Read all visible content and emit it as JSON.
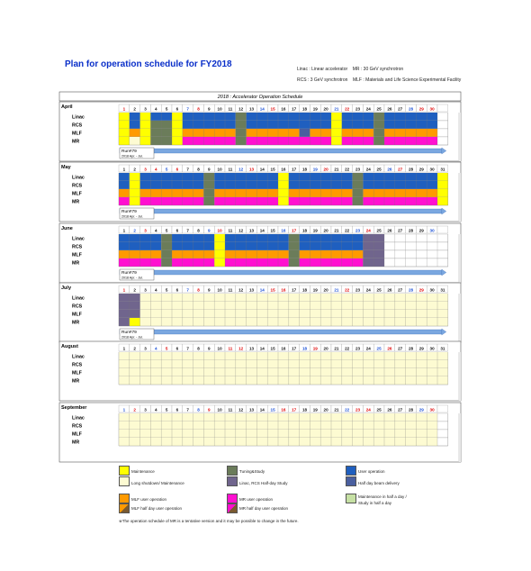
{
  "title": "Plan for operation schedule for FY2018",
  "abbrev": {
    "linac": "Linac : Linear accelerator",
    "mr": "MR : 30 GeV synchrotron",
    "rcs": "RCS : 3 GeV synchrotron",
    "mlf": "MLF : Materials and Life Science Experimental Facility"
  },
  "table_title": "2018 : Accelerator Operation Schedule",
  "facilities": [
    "Linac",
    "RCS",
    "MLF",
    "MR"
  ],
  "colors": {
    "maint": "#ffff00",
    "tuning": "#6b7c5a",
    "user": "#1f5fbf",
    "mlf": "#ff9a00",
    "mr": "#ff10d0",
    "longshut": "#fdfbd2",
    "halfday": "#c6e0a4",
    "beamdelivery": "#4a5f9f",
    "rcshalf": "#70658d",
    "bg": "#ffffff",
    "grid": "#8a8a8a",
    "weekend_grey": "#d8d8d8",
    "runbar": "#7aa7e0"
  },
  "months": [
    {
      "name": "April",
      "days": 30,
      "sundays": [
        1,
        8,
        15,
        22,
        29
      ],
      "saturdays": [
        7,
        14,
        21,
        28
      ],
      "holidays": [
        30
      ],
      "run": {
        "label": "Run#79",
        "sub": "2018 Apr. - Jul."
      },
      "rows": {
        "Linac": [
          [
            "maint",
            1,
            1
          ],
          [
            "user",
            2,
            2
          ],
          [
            "maint",
            3,
            3
          ],
          [
            "user",
            4,
            5
          ],
          [
            "maint",
            6,
            6
          ],
          [
            "user",
            7,
            11
          ],
          [
            "tuning",
            12,
            12
          ],
          [
            "user",
            13,
            20
          ],
          [
            "maint",
            21,
            21
          ],
          [
            "user",
            22,
            24
          ],
          [
            "tuning",
            25,
            25
          ],
          [
            "user",
            26,
            30
          ]
        ],
        "RCS": [
          [
            "maint",
            1,
            1
          ],
          [
            "user",
            2,
            2
          ],
          [
            "maint",
            3,
            3
          ],
          [
            "tuning",
            4,
            5
          ],
          [
            "maint",
            6,
            6
          ],
          [
            "user",
            7,
            11
          ],
          [
            "tuning",
            12,
            12
          ],
          [
            "user",
            13,
            20
          ],
          [
            "maint",
            21,
            21
          ],
          [
            "user",
            22,
            24
          ],
          [
            "tuning",
            25,
            25
          ],
          [
            "user",
            26,
            30
          ]
        ],
        "MLF": [
          [
            "maint",
            1,
            1
          ],
          [
            "mlf",
            2,
            2
          ],
          [
            "maint",
            3,
            3
          ],
          [
            "tuning",
            4,
            5
          ],
          [
            "maint",
            6,
            6
          ],
          [
            "mlf",
            7,
            11
          ],
          [
            "tuning",
            12,
            12
          ],
          [
            "mlf",
            13,
            17
          ],
          [
            "beamdelivery",
            18,
            18
          ],
          [
            "mlf",
            19,
            20
          ],
          [
            "maint",
            21,
            21
          ],
          [
            "mlf",
            22,
            24
          ],
          [
            "tuning",
            25,
            25
          ],
          [
            "mlf",
            26,
            30
          ]
        ],
        "MR": [
          [
            "maint",
            1,
            1
          ],
          [
            "longshut",
            2,
            2
          ],
          [
            "maint",
            3,
            3
          ],
          [
            "tuning",
            4,
            5
          ],
          [
            "maint",
            6,
            6
          ],
          [
            "mr",
            7,
            11
          ],
          [
            "tuning",
            12,
            12
          ],
          [
            "mr",
            13,
            20
          ],
          [
            "maint",
            21,
            21
          ],
          [
            "mr",
            22,
            24
          ],
          [
            "tuning",
            25,
            25
          ],
          [
            "mr",
            26,
            30
          ]
        ]
      }
    },
    {
      "name": "May",
      "days": 31,
      "sundays": [
        6,
        13,
        20,
        27
      ],
      "saturdays": [
        5,
        12,
        19,
        26
      ],
      "holidays": [
        3,
        4
      ],
      "run": {
        "label": "Run#79",
        "sub": "2018 Apr. - Jul."
      },
      "rows": {
        "Linac": [
          [
            "user",
            1,
            1
          ],
          [
            "maint",
            2,
            2
          ],
          [
            "user",
            3,
            8
          ],
          [
            "tuning",
            9,
            9
          ],
          [
            "user",
            10,
            15
          ],
          [
            "maint",
            16,
            16
          ],
          [
            "user",
            17,
            22
          ],
          [
            "tuning",
            23,
            23
          ],
          [
            "user",
            24,
            30
          ],
          [
            "maint",
            31,
            31
          ]
        ],
        "RCS": [
          [
            "user",
            1,
            1
          ],
          [
            "maint",
            2,
            2
          ],
          [
            "user",
            3,
            8
          ],
          [
            "tuning",
            9,
            9
          ],
          [
            "user",
            10,
            15
          ],
          [
            "maint",
            16,
            16
          ],
          [
            "user",
            17,
            22
          ],
          [
            "tuning",
            23,
            23
          ],
          [
            "user",
            24,
            30
          ],
          [
            "maint",
            31,
            31
          ]
        ],
        "MLF": [
          [
            "mlf",
            1,
            1
          ],
          [
            "maint",
            2,
            2
          ],
          [
            "mlf",
            3,
            8
          ],
          [
            "tuning",
            9,
            9
          ],
          [
            "mlf",
            10,
            15
          ],
          [
            "maint",
            16,
            16
          ],
          [
            "mlf",
            17,
            22
          ],
          [
            "tuning",
            23,
            23
          ],
          [
            "mlf",
            24,
            30
          ],
          [
            "maint",
            31,
            31
          ]
        ],
        "MR": [
          [
            "mr",
            1,
            1
          ],
          [
            "maint",
            2,
            2
          ],
          [
            "mr",
            3,
            8
          ],
          [
            "tuning",
            9,
            9
          ],
          [
            "mr",
            10,
            15
          ],
          [
            "maint",
            16,
            16
          ],
          [
            "mr",
            17,
            22
          ],
          [
            "tuning",
            23,
            23
          ],
          [
            "mr",
            24,
            30
          ],
          [
            "maint",
            31,
            31
          ]
        ]
      }
    },
    {
      "name": "June",
      "days": 30,
      "sundays": [
        3,
        10,
        17,
        24
      ],
      "saturdays": [
        2,
        9,
        16,
        23,
        30
      ],
      "holidays": [],
      "run": {
        "label": "Run#79",
        "sub": "2018 Apr. - Jul."
      },
      "rows": {
        "Linac": [
          [
            "user",
            1,
            4
          ],
          [
            "tuning",
            5,
            5
          ],
          [
            "user",
            6,
            9
          ],
          [
            "maint",
            10,
            10
          ],
          [
            "user",
            11,
            16
          ],
          [
            "tuning",
            17,
            17
          ],
          [
            "user",
            18,
            23
          ],
          [
            "rcshalf",
            24,
            25
          ]
        ],
        "RCS": [
          [
            "user",
            1,
            4
          ],
          [
            "tuning",
            5,
            5
          ],
          [
            "user",
            6,
            9
          ],
          [
            "maint",
            10,
            10
          ],
          [
            "user",
            11,
            16
          ],
          [
            "tuning",
            17,
            17
          ],
          [
            "user",
            18,
            23
          ],
          [
            "rcshalf",
            24,
            25
          ]
        ],
        "MLF": [
          [
            "mlf",
            1,
            4
          ],
          [
            "tuning",
            5,
            5
          ],
          [
            "mlf",
            6,
            9
          ],
          [
            "maint",
            10,
            10
          ],
          [
            "mlf",
            11,
            16
          ],
          [
            "tuning",
            17,
            17
          ],
          [
            "mlf",
            18,
            23
          ],
          [
            "rcshalf",
            24,
            25
          ]
        ],
        "MR": [
          [
            "mr",
            1,
            4
          ],
          [
            "tuning",
            5,
            5
          ],
          [
            "mr",
            6,
            9
          ],
          [
            "maint",
            10,
            10
          ],
          [
            "mr",
            11,
            16
          ],
          [
            "tuning",
            17,
            17
          ],
          [
            "mr",
            18,
            23
          ],
          [
            "rcshalf",
            24,
            25
          ]
        ]
      }
    },
    {
      "name": "July",
      "days": 31,
      "sundays": [
        1,
        8,
        15,
        22,
        29
      ],
      "saturdays": [
        7,
        14,
        21,
        28
      ],
      "holidays": [
        16
      ],
      "run": {
        "label": "Run#79",
        "sub": "2018 Apr. - Jul."
      },
      "rows": {
        "Linac": [
          [
            "rcshalf",
            1,
            2
          ],
          [
            "longshut",
            3,
            31
          ]
        ],
        "RCS": [
          [
            "rcshalf",
            1,
            2
          ],
          [
            "longshut",
            3,
            31
          ]
        ],
        "MLF": [
          [
            "rcshalf",
            1,
            2
          ],
          [
            "longshut",
            3,
            31
          ]
        ],
        "MR": [
          [
            "rcshalf",
            1,
            1
          ],
          [
            "maint",
            2,
            2
          ],
          [
            "longshut",
            3,
            31
          ]
        ]
      }
    },
    {
      "name": "August",
      "days": 31,
      "sundays": [
        5,
        12,
        19,
        26
      ],
      "saturdays": [
        4,
        11,
        18,
        25
      ],
      "holidays": [
        11
      ],
      "rows": {
        "Linac": [
          [
            "longshut",
            1,
            31
          ]
        ],
        "RCS": [
          [
            "longshut",
            1,
            31
          ]
        ],
        "MLF": [
          [
            "longshut",
            1,
            31
          ]
        ],
        "MR": [
          [
            "longshut",
            1,
            31
          ]
        ]
      }
    },
    {
      "name": "September",
      "days": 30,
      "sundays": [
        2,
        9,
        16,
        23,
        30
      ],
      "saturdays": [
        1,
        8,
        15,
        22,
        29
      ],
      "holidays": [
        17,
        24
      ],
      "rows": {
        "Linac": [
          [
            "longshut",
            1,
            30
          ]
        ],
        "RCS": [
          [
            "longshut",
            1,
            30
          ]
        ],
        "MLF": [
          [
            "longshut",
            1,
            30
          ]
        ],
        "MR": [
          [
            "longshut",
            1,
            30
          ]
        ]
      }
    }
  ],
  "legend": [
    {
      "key": "maint",
      "label": "Maintenance"
    },
    {
      "key": "longshut",
      "label": "Long shutdown/ Maintenance"
    },
    {
      "key": "tuning",
      "label": "Tuning&Study"
    },
    {
      "key": "rcshalf",
      "label": "Linac, RCS Half-day Study"
    },
    {
      "key": "user",
      "label": "User operation"
    },
    {
      "key": "beamdelivery",
      "label": "Half day beam delivery"
    },
    {
      "key": "mlf",
      "label": "MLF user operation"
    },
    {
      "key": "mlfhalf",
      "label": "MLF half day user operation"
    },
    {
      "key": "mr",
      "label": "MR user operation"
    },
    {
      "key": "mrhalf",
      "label": "MR half day user operation"
    },
    {
      "key": "halfday",
      "label": "Maintenance in half a day /"
    },
    {
      "key": "halfday2",
      "label": "Study in half a day"
    }
  ],
  "footnote": "※The operation schedule of MR is a tentative version and it may be possible to change in the future."
}
